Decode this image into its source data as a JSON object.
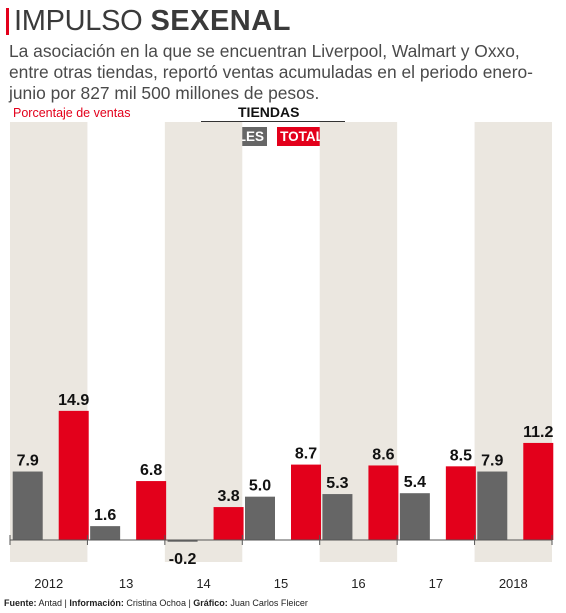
{
  "header": {
    "title_light": "IMPULSO",
    "title_bold": "SEXENAL",
    "subtitle": "La asociación en la que se encuentran Liverpool, Walmart y Oxxo, entre otras tiendas, reportó ventas acumuladas en el periodo enero-junio por 827 mil 500 millones de pesos."
  },
  "legend": {
    "title": "TIENDAS",
    "iguales": "IGUALES",
    "totales": "TOTALES"
  },
  "colors": {
    "iguales": "#666666",
    "totales": "#e3001b",
    "band": "#ebe7e0",
    "accent": "#e3001b"
  },
  "chart_data": {
    "type": "bar",
    "ylabel": "Porcentaje de ventas",
    "categories": [
      "2012",
      "13",
      "14",
      "15",
      "16",
      "17",
      "2018"
    ],
    "series": [
      {
        "name": "IGUALES",
        "values": [
          7.9,
          1.6,
          -0.2,
          5.0,
          5.3,
          5.4,
          7.9
        ],
        "labels": [
          "7.9",
          "1.6",
          "-0.2",
          "5.0",
          "5.3",
          "5.4",
          "7.9"
        ]
      },
      {
        "name": "TOTALES",
        "values": [
          14.9,
          6.8,
          3.8,
          8.7,
          8.6,
          8.5,
          11.2
        ],
        "labels": [
          "14.9",
          "6.8",
          "3.8",
          "8.7",
          "8.6",
          "8.5",
          "11.2"
        ]
      }
    ],
    "shaded_categories": [
      "2012",
      "14",
      "16",
      "2018"
    ],
    "grid": false,
    "legend_position": "top-center"
  },
  "footer": {
    "fuente_label": "Fuente:",
    "fuente": "Antad",
    "info_label": "Información:",
    "info": "Cristina Ochoa",
    "grafico_label": "Gráfico:",
    "grafico": "Juan Carlos Fleicer"
  }
}
